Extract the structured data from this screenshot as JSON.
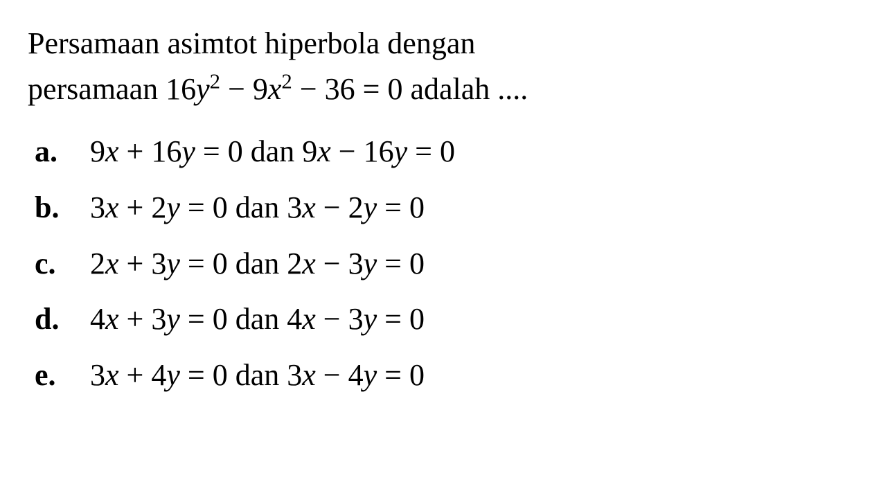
{
  "document": {
    "background_color": "#ffffff",
    "text_color": "#000000",
    "font_family": "Times New Roman",
    "question_fontsize": 44,
    "option_fontsize": 44,
    "question_line1": "Persamaan asimtot hiperbola dengan",
    "question_line2_prefix": "persamaan 16",
    "question_var_y": "y",
    "question_sup2_1": "2",
    "question_mid1": " − 9",
    "question_var_x": "x",
    "question_sup2_2": "2",
    "question_suffix": " − 36 = 0 adalah ....",
    "options": [
      {
        "letter": "a.",
        "p1": "9",
        "v1": "x",
        "p2": " + 16",
        "v2": "y",
        "p3": " = 0 dan 9",
        "v3": "x",
        "p4": " − 16",
        "v4": "y",
        "p5": " = 0"
      },
      {
        "letter": "b.",
        "p1": "3",
        "v1": "x",
        "p2": " + 2",
        "v2": "y",
        "p3": " = 0 dan 3",
        "v3": "x",
        "p4": " − 2",
        "v4": "y",
        "p5": " = 0"
      },
      {
        "letter": "c.",
        "p1": "2",
        "v1": "x",
        "p2": " + 3",
        "v2": "y",
        "p3": " = 0 dan 2",
        "v3": "x",
        "p4": " − 3",
        "v4": "y",
        "p5": " = 0"
      },
      {
        "letter": "d.",
        "p1": "4",
        "v1": "x",
        "p2": " + 3",
        "v2": "y",
        "p3": " = 0 dan 4",
        "v3": "x",
        "p4": " − 3",
        "v4": "y",
        "p5": " = 0"
      },
      {
        "letter": "e.",
        "p1": "3",
        "v1": "x",
        "p2": " + 4",
        "v2": "y",
        "p3": " = 0 dan 3",
        "v3": "x",
        "p4": " − 4",
        "v4": "y",
        "p5": " = 0"
      }
    ]
  }
}
